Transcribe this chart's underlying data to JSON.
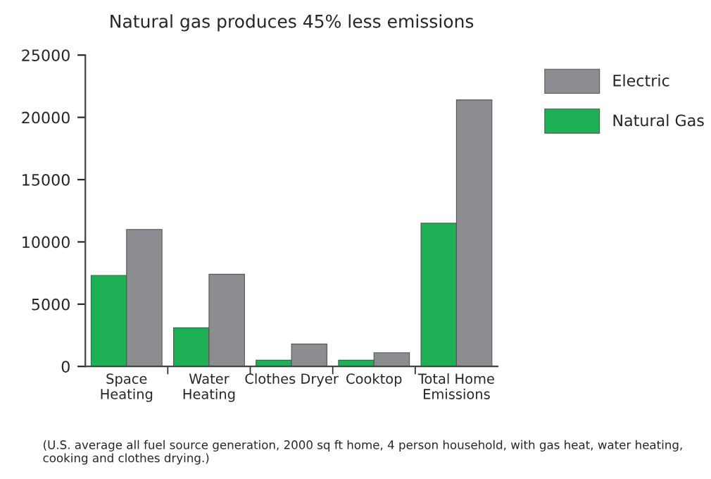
{
  "chart_data": {
    "type": "bar",
    "title": "Natural gas produces 45% less emissions",
    "categories": [
      "Space\nHeating",
      "Water\nHeating",
      "Clothes Dryer",
      "Cooktop",
      "Total Home\nEmissions"
    ],
    "series": [
      {
        "name": "Natural Gas",
        "color": "#1db054",
        "values": [
          7300,
          3100,
          500,
          500,
          11500
        ]
      },
      {
        "name": "Electric",
        "color": "#8c8d91",
        "values": [
          11000,
          7400,
          1800,
          1100,
          21400
        ]
      }
    ],
    "ylim": [
      0,
      25000
    ],
    "yticks": [
      0,
      5000,
      10000,
      15000,
      20000,
      25000
    ],
    "grid": false,
    "legend": "top right",
    "annotations": [
      "(U.S. average all fuel source generation, 2000 sq ft home, 4 person household, with gas heat, water heating, cooking and clothes drying.)"
    ]
  }
}
